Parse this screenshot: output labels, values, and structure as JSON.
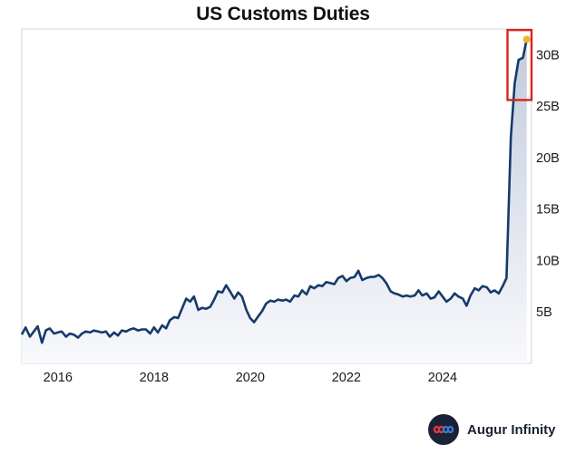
{
  "chart_data": {
    "type": "area",
    "title": "US Customs Duties",
    "xlabel": "",
    "ylabel": "",
    "x_ticks": [
      "2016",
      "2018",
      "2020",
      "2022",
      "2024"
    ],
    "x_tick_values": [
      2016,
      2018,
      2020,
      2022,
      2024
    ],
    "y_ticks": [
      "5B",
      "10B",
      "15B",
      "20B",
      "25B",
      "30B"
    ],
    "y_tick_values": [
      5,
      10,
      15,
      20,
      25,
      30
    ],
    "xlim": [
      2015.25,
      2025.85
    ],
    "ylim": [
      0,
      32.5
    ],
    "y_axis_position": "right",
    "grid": false,
    "series": [
      {
        "x": [
          2015.25,
          2015.33,
          2015.42,
          2015.5,
          2015.58,
          2015.67,
          2015.75,
          2015.83,
          2015.92,
          2016.0,
          2016.08,
          2016.17,
          2016.25,
          2016.33,
          2016.42,
          2016.5,
          2016.58,
          2016.67,
          2016.75,
          2016.83,
          2016.92,
          2017.0,
          2017.08,
          2017.17,
          2017.25,
          2017.33,
          2017.42,
          2017.5,
          2017.58,
          2017.67,
          2017.75,
          2017.83,
          2017.92,
          2018.0,
          2018.08,
          2018.17,
          2018.25,
          2018.33,
          2018.42,
          2018.5,
          2018.58,
          2018.67,
          2018.75,
          2018.83,
          2018.92,
          2019.0,
          2019.08,
          2019.17,
          2019.25,
          2019.33,
          2019.42,
          2019.5,
          2019.58,
          2019.67,
          2019.75,
          2019.83,
          2019.92,
          2020.0,
          2020.08,
          2020.17,
          2020.25,
          2020.33,
          2020.42,
          2020.5,
          2020.58,
          2020.67,
          2020.75,
          2020.83,
          2020.92,
          2021.0,
          2021.08,
          2021.17,
          2021.25,
          2021.33,
          2021.42,
          2021.5,
          2021.58,
          2021.67,
          2021.75,
          2021.83,
          2021.92,
          2022.0,
          2022.08,
          2022.17,
          2022.25,
          2022.33,
          2022.42,
          2022.5,
          2022.58,
          2022.67,
          2022.75,
          2022.83,
          2022.92,
          2023.0,
          2023.08,
          2023.17,
          2023.25,
          2023.33,
          2023.42,
          2023.5,
          2023.58,
          2023.67,
          2023.75,
          2023.83,
          2023.92,
          2024.0,
          2024.08,
          2024.17,
          2024.25,
          2024.33,
          2024.42,
          2024.5,
          2024.58,
          2024.67,
          2024.75,
          2024.83,
          2024.92,
          2025.0,
          2025.08,
          2025.17,
          2025.25,
          2025.33,
          2025.42,
          2025.5,
          2025.58,
          2025.67,
          2025.75
        ],
        "values": [
          2.8,
          3.5,
          2.6,
          3.1,
          3.6,
          2.0,
          3.2,
          3.4,
          2.9,
          3.0,
          3.1,
          2.6,
          2.9,
          2.8,
          2.5,
          2.9,
          3.1,
          3.0,
          3.2,
          3.1,
          3.0,
          3.1,
          2.6,
          3.0,
          2.7,
          3.2,
          3.1,
          3.3,
          3.4,
          3.2,
          3.3,
          3.3,
          2.9,
          3.5,
          3.0,
          3.7,
          3.4,
          4.2,
          4.5,
          4.4,
          5.3,
          6.3,
          6.0,
          6.5,
          5.2,
          5.4,
          5.3,
          5.5,
          6.2,
          7.0,
          6.9,
          7.6,
          7.0,
          6.3,
          6.9,
          6.5,
          5.2,
          4.4,
          4.0,
          4.6,
          5.1,
          5.8,
          6.1,
          6.0,
          6.2,
          6.1,
          6.2,
          6.0,
          6.6,
          6.5,
          7.1,
          6.7,
          7.5,
          7.3,
          7.6,
          7.5,
          7.9,
          7.8,
          7.7,
          8.3,
          8.5,
          8.0,
          8.3,
          8.4,
          9.0,
          8.1,
          8.3,
          8.4,
          8.4,
          8.6,
          8.3,
          7.8,
          7.0,
          6.8,
          6.7,
          6.5,
          6.6,
          6.5,
          6.6,
          7.1,
          6.6,
          6.8,
          6.3,
          6.4,
          7.0,
          6.5,
          6.0,
          6.3,
          6.8,
          6.5,
          6.3,
          5.6,
          6.6,
          7.3,
          7.1,
          7.5,
          7.4,
          6.9,
          7.1,
          6.8,
          7.5,
          8.3,
          22.0,
          27.2,
          29.5,
          29.7,
          31.5
        ],
        "color": "#163a6b",
        "last_point_color": "#f0b429"
      }
    ],
    "annotation": {
      "type": "highlight-box",
      "x_range": [
        2025.35,
        2025.85
      ],
      "y_range": [
        25.6,
        32.4
      ],
      "color": "#d9251c"
    }
  },
  "brand": {
    "name": "Augur Infinity",
    "logo_icon": "infinity-icon"
  }
}
